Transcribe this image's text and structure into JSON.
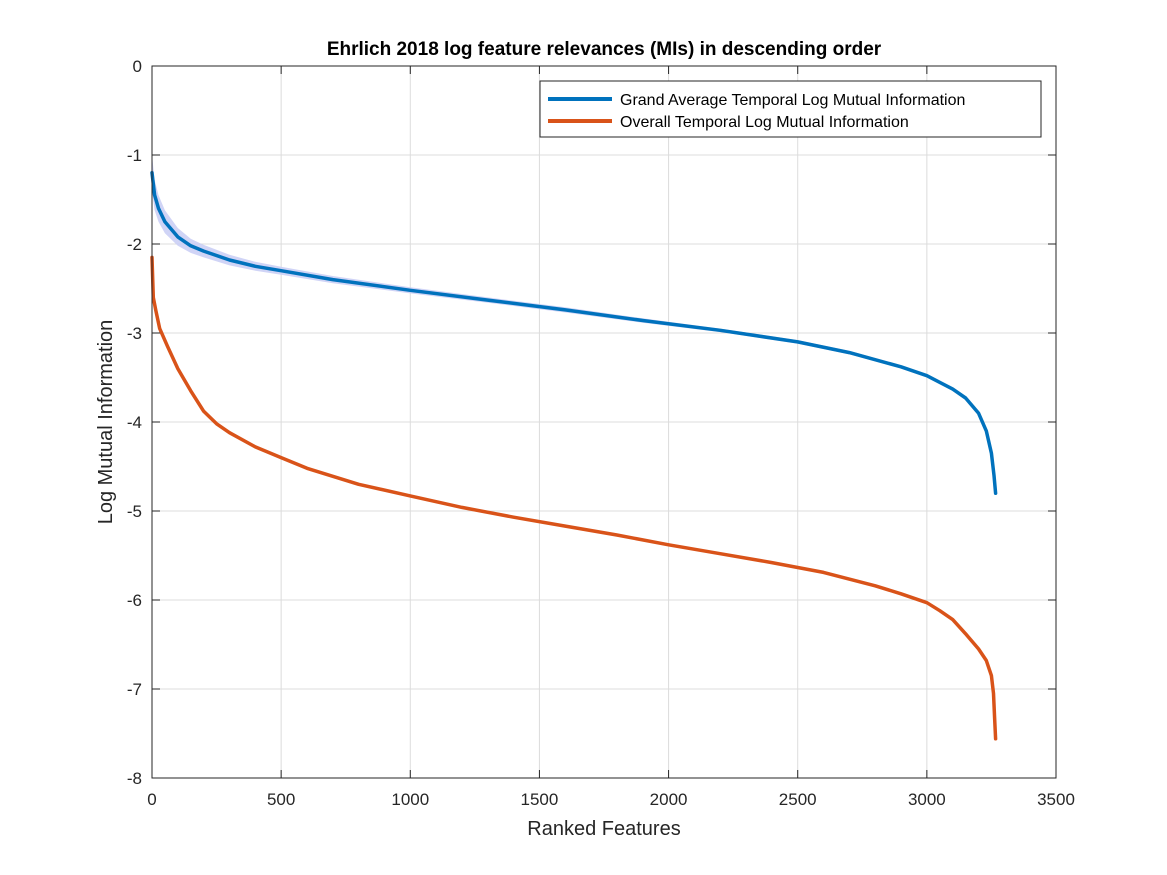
{
  "chart_data": {
    "type": "line",
    "title": "Ehrlich 2018 log feature relevances (MIs) in descending order",
    "xlabel": "Ranked Features",
    "ylabel": "Log Mutual Information",
    "xlim": [
      0,
      3500
    ],
    "ylim": [
      -8,
      0
    ],
    "xticks": [
      "0",
      "500",
      "1000",
      "1500",
      "2000",
      "2500",
      "3000",
      "3500"
    ],
    "yticks": [
      "0",
      "-1",
      "-2",
      "-3",
      "-4",
      "-5",
      "-6",
      "-7",
      "-8"
    ],
    "grid": true,
    "legend_position": "top-right",
    "series": [
      {
        "name": "Grand Average Temporal Log Mutual Information",
        "color": "#0072BD",
        "band_color": "#C8CCF5",
        "x": [
          0,
          10,
          25,
          50,
          100,
          150,
          200,
          300,
          400,
          500,
          700,
          1000,
          1300,
          1600,
          1900,
          2200,
          2500,
          2700,
          2900,
          3000,
          3100,
          3150,
          3200,
          3230,
          3250,
          3260,
          3266
        ],
        "values": [
          -1.2,
          -1.45,
          -1.6,
          -1.75,
          -1.92,
          -2.02,
          -2.08,
          -2.18,
          -2.25,
          -2.3,
          -2.4,
          -2.52,
          -2.63,
          -2.74,
          -2.86,
          -2.97,
          -3.1,
          -3.22,
          -3.38,
          -3.48,
          -3.63,
          -3.73,
          -3.9,
          -4.1,
          -4.35,
          -4.6,
          -4.8
        ],
        "band": [
          0.2,
          0.17,
          0.15,
          0.13,
          0.1,
          0.08,
          0.07,
          0.06,
          0.05,
          0.045,
          0.04,
          0.035,
          0.03,
          0.03,
          0.025,
          0.02,
          0.02,
          0.02,
          0.015,
          0.015,
          0.01,
          0.01,
          0.01,
          0.01,
          0.01,
          0.01,
          0.01
        ]
      },
      {
        "name": "Overall Temporal Log Mutual Information",
        "color": "#D95319",
        "x": [
          0,
          5,
          15,
          30,
          60,
          100,
          150,
          200,
          250,
          300,
          400,
          500,
          600,
          800,
          1000,
          1200,
          1400,
          1600,
          1800,
          2000,
          2200,
          2400,
          2600,
          2800,
          2900,
          3000,
          3050,
          3100,
          3150,
          3200,
          3230,
          3250,
          3258,
          3262,
          3266
        ],
        "values": [
          -2.15,
          -2.6,
          -2.75,
          -2.95,
          -3.15,
          -3.4,
          -3.65,
          -3.88,
          -4.02,
          -4.12,
          -4.28,
          -4.4,
          -4.52,
          -4.7,
          -4.83,
          -4.96,
          -5.07,
          -5.17,
          -5.27,
          -5.38,
          -5.48,
          -5.58,
          -5.69,
          -5.84,
          -5.93,
          -6.03,
          -6.12,
          -6.22,
          -6.38,
          -6.55,
          -6.68,
          -6.85,
          -7.05,
          -7.3,
          -7.56
        ]
      }
    ]
  }
}
